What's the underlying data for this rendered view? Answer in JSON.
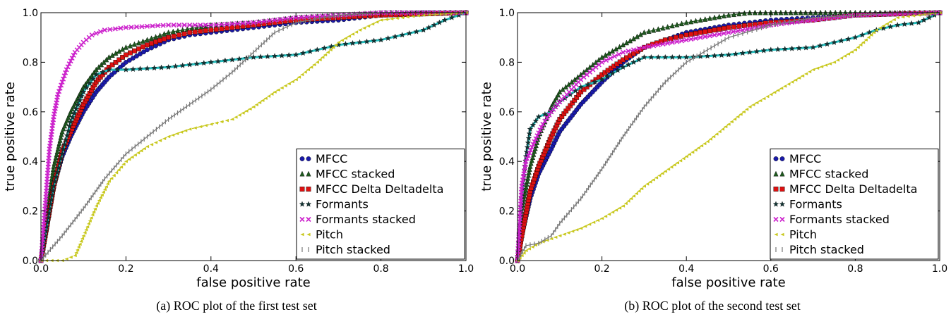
{
  "chart_data": [
    {
      "type": "line",
      "caption": "(a) ROC plot of the first test set",
      "xlabel": "false positive rate",
      "ylabel": "true positive rate",
      "xlim": [
        0,
        1
      ],
      "ylim": [
        0,
        1
      ],
      "xticks": [
        "0.0",
        "0.2",
        "0.4",
        "0.6",
        "0.8",
        "1.0"
      ],
      "yticks": [
        "0.0",
        "0.2",
        "0.4",
        "0.6",
        "0.8",
        "1.0"
      ],
      "legend_position": "bottom-right",
      "series": [
        {
          "name": "MFCC",
          "color": "#1a1aaa",
          "marker": "circle",
          "x": [
            0,
            0.01,
            0.03,
            0.05,
            0.07,
            0.1,
            0.13,
            0.16,
            0.2,
            0.25,
            0.3,
            0.35,
            0.4,
            0.5,
            0.6,
            0.7,
            0.8,
            0.9,
            1.0
          ],
          "y": [
            0,
            0.1,
            0.3,
            0.42,
            0.5,
            0.6,
            0.68,
            0.74,
            0.8,
            0.85,
            0.89,
            0.91,
            0.92,
            0.94,
            0.96,
            0.97,
            0.99,
            1.0,
            1.0
          ]
        },
        {
          "name": "MFCC stacked",
          "color": "#1e5a1e",
          "marker": "triangle",
          "x": [
            0,
            0.01,
            0.03,
            0.05,
            0.07,
            0.1,
            0.13,
            0.16,
            0.2,
            0.25,
            0.3,
            0.4,
            0.5,
            0.6,
            0.7,
            0.8,
            1.0
          ],
          "y": [
            0,
            0.15,
            0.38,
            0.52,
            0.6,
            0.7,
            0.77,
            0.82,
            0.86,
            0.89,
            0.92,
            0.95,
            0.96,
            0.98,
            0.99,
            1.0,
            1.0
          ]
        },
        {
          "name": "MFCC Delta Deltadelta",
          "color": "#dd1111",
          "marker": "square",
          "x": [
            0,
            0.01,
            0.03,
            0.05,
            0.07,
            0.1,
            0.13,
            0.16,
            0.2,
            0.25,
            0.3,
            0.35,
            0.4,
            0.5,
            0.6,
            0.7,
            0.8,
            1.0
          ],
          "y": [
            0,
            0.1,
            0.3,
            0.44,
            0.52,
            0.63,
            0.72,
            0.78,
            0.83,
            0.87,
            0.9,
            0.92,
            0.93,
            0.95,
            0.97,
            0.98,
            0.99,
            1.0
          ]
        },
        {
          "name": "Formants",
          "color": "#22bbbb",
          "marker": "star",
          "x": [
            0,
            0.01,
            0.03,
            0.05,
            0.07,
            0.1,
            0.13,
            0.16,
            0.2,
            0.3,
            0.4,
            0.5,
            0.6,
            0.65,
            0.7,
            0.75,
            0.8,
            0.85,
            0.9,
            0.95,
            1.0
          ],
          "y": [
            0,
            0.1,
            0.3,
            0.43,
            0.56,
            0.68,
            0.75,
            0.77,
            0.77,
            0.78,
            0.8,
            0.82,
            0.83,
            0.85,
            0.87,
            0.88,
            0.89,
            0.91,
            0.93,
            0.97,
            1.0
          ]
        },
        {
          "name": "Formants stacked",
          "color": "#cc22cc",
          "marker": "x",
          "x": [
            0,
            0.01,
            0.02,
            0.03,
            0.04,
            0.06,
            0.08,
            0.1,
            0.12,
            0.15,
            0.2,
            0.3,
            0.4,
            0.5,
            0.6,
            0.7,
            0.8,
            0.9,
            1.0
          ],
          "y": [
            0,
            0.22,
            0.45,
            0.58,
            0.67,
            0.77,
            0.84,
            0.88,
            0.91,
            0.93,
            0.94,
            0.95,
            0.95,
            0.96,
            0.98,
            0.99,
            1.0,
            1.0,
            1.0
          ]
        },
        {
          "name": "Pitch",
          "color": "#c8c81e",
          "marker": "triangle-small",
          "x": [
            0,
            0.05,
            0.08,
            0.1,
            0.13,
            0.16,
            0.2,
            0.25,
            0.3,
            0.35,
            0.4,
            0.45,
            0.5,
            0.55,
            0.6,
            0.65,
            0.7,
            0.75,
            0.8,
            0.9,
            1.0
          ],
          "y": [
            0,
            0.0,
            0.02,
            0.1,
            0.22,
            0.32,
            0.4,
            0.46,
            0.5,
            0.53,
            0.55,
            0.57,
            0.62,
            0.68,
            0.73,
            0.8,
            0.88,
            0.93,
            0.97,
            0.99,
            1.0
          ]
        },
        {
          "name": "Pitch stacked",
          "color": "#777777",
          "marker": "bar",
          "x": [
            0,
            0.05,
            0.1,
            0.15,
            0.2,
            0.25,
            0.3,
            0.35,
            0.4,
            0.45,
            0.5,
            0.55,
            0.6,
            0.7,
            0.8,
            0.9,
            1.0
          ],
          "y": [
            0,
            0.1,
            0.21,
            0.33,
            0.43,
            0.5,
            0.57,
            0.63,
            0.69,
            0.76,
            0.84,
            0.92,
            0.96,
            0.99,
            1.0,
            1.0,
            1.0
          ]
        }
      ]
    },
    {
      "type": "line",
      "caption": "(b) ROC plot of the second test set",
      "xlabel": "false positive rate",
      "ylabel": "true positive rate",
      "xlim": [
        0,
        1
      ],
      "ylim": [
        0,
        1
      ],
      "xticks": [
        "0.0",
        "0.2",
        "0.4",
        "0.6",
        "0.8",
        "1.0"
      ],
      "yticks": [
        "0.0",
        "0.2",
        "0.4",
        "0.6",
        "0.8",
        "1.0"
      ],
      "legend_position": "bottom-right",
      "series": [
        {
          "name": "MFCC",
          "color": "#1a1aaa",
          "marker": "circle",
          "x": [
            0,
            0.01,
            0.03,
            0.05,
            0.08,
            0.1,
            0.15,
            0.2,
            0.25,
            0.3,
            0.35,
            0.4,
            0.5,
            0.6,
            0.7,
            0.8,
            1.0
          ],
          "y": [
            0,
            0.1,
            0.25,
            0.35,
            0.45,
            0.52,
            0.63,
            0.72,
            0.8,
            0.86,
            0.89,
            0.92,
            0.95,
            0.97,
            0.98,
            0.99,
            1.0
          ]
        },
        {
          "name": "MFCC stacked",
          "color": "#1e5a1e",
          "marker": "triangle",
          "x": [
            0,
            0.01,
            0.03,
            0.05,
            0.08,
            0.1,
            0.15,
            0.2,
            0.25,
            0.3,
            0.4,
            0.5,
            0.55,
            0.6,
            0.8,
            1.0
          ],
          "y": [
            0,
            0.2,
            0.38,
            0.5,
            0.62,
            0.68,
            0.75,
            0.82,
            0.87,
            0.92,
            0.96,
            0.99,
            1.0,
            1.0,
            1.0,
            1.0
          ]
        },
        {
          "name": "MFCC Delta Deltadelta",
          "color": "#dd1111",
          "marker": "square",
          "x": [
            0,
            0.01,
            0.03,
            0.05,
            0.08,
            0.1,
            0.15,
            0.2,
            0.25,
            0.3,
            0.35,
            0.4,
            0.5,
            0.6,
            0.7,
            0.8,
            1.0
          ],
          "y": [
            0,
            0.1,
            0.28,
            0.38,
            0.5,
            0.57,
            0.68,
            0.75,
            0.81,
            0.86,
            0.89,
            0.91,
            0.94,
            0.96,
            0.97,
            0.99,
            1.0
          ]
        },
        {
          "name": "Formants",
          "color": "#22bbbb",
          "marker": "star",
          "x": [
            0,
            0.01,
            0.02,
            0.03,
            0.05,
            0.08,
            0.1,
            0.15,
            0.2,
            0.25,
            0.3,
            0.4,
            0.5,
            0.6,
            0.7,
            0.75,
            0.8,
            0.85,
            0.9,
            0.95,
            1.0
          ],
          "y": [
            0,
            0.25,
            0.42,
            0.53,
            0.58,
            0.6,
            0.64,
            0.7,
            0.73,
            0.78,
            0.82,
            0.82,
            0.83,
            0.85,
            0.86,
            0.88,
            0.9,
            0.93,
            0.95,
            0.96,
            1.0
          ]
        },
        {
          "name": "Formants stacked",
          "color": "#cc22cc",
          "marker": "x",
          "x": [
            0,
            0.01,
            0.02,
            0.04,
            0.06,
            0.08,
            0.1,
            0.15,
            0.2,
            0.25,
            0.3,
            0.4,
            0.5,
            0.6,
            0.7,
            0.8,
            1.0
          ],
          "y": [
            0,
            0.3,
            0.4,
            0.48,
            0.55,
            0.6,
            0.64,
            0.73,
            0.8,
            0.84,
            0.86,
            0.89,
            0.92,
            0.95,
            0.97,
            0.99,
            1.0
          ]
        },
        {
          "name": "Pitch",
          "color": "#c8c81e",
          "marker": "triangle-small",
          "x": [
            0,
            0.02,
            0.05,
            0.1,
            0.15,
            0.2,
            0.25,
            0.3,
            0.35,
            0.4,
            0.45,
            0.5,
            0.55,
            0.6,
            0.65,
            0.7,
            0.75,
            0.8,
            0.85,
            0.9,
            1.0
          ],
          "y": [
            0,
            0.04,
            0.07,
            0.1,
            0.13,
            0.17,
            0.22,
            0.3,
            0.36,
            0.42,
            0.48,
            0.55,
            0.62,
            0.67,
            0.72,
            0.77,
            0.8,
            0.85,
            0.93,
            0.98,
            1.0
          ]
        },
        {
          "name": "Pitch stacked",
          "color": "#777777",
          "marker": "bar",
          "x": [
            0,
            0.02,
            0.05,
            0.08,
            0.1,
            0.15,
            0.2,
            0.25,
            0.3,
            0.35,
            0.4,
            0.45,
            0.5,
            0.6,
            0.7,
            0.8,
            0.9,
            1.0
          ],
          "y": [
            0,
            0.06,
            0.07,
            0.1,
            0.15,
            0.25,
            0.37,
            0.5,
            0.62,
            0.72,
            0.8,
            0.85,
            0.9,
            0.95,
            0.98,
            0.99,
            1.0,
            1.0
          ]
        }
      ]
    }
  ]
}
